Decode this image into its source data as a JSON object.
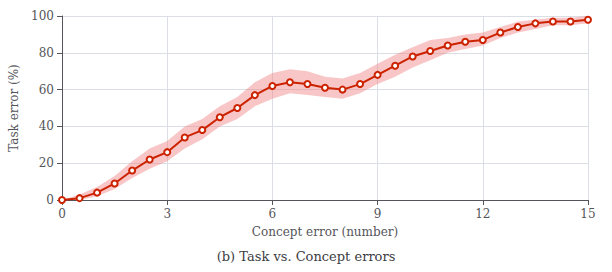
{
  "chart_data": {
    "type": "line",
    "title": "(b) Task vs. Concept errors",
    "xlabel": "Concept error (number)",
    "ylabel": "Task error (%)",
    "x": [
      0,
      0.5,
      1,
      1.5,
      2,
      2.5,
      3,
      3.5,
      4,
      4.5,
      5,
      5.5,
      6,
      6.5,
      7,
      7.5,
      8,
      8.5,
      9,
      9.5,
      10,
      10.5,
      11,
      11.5,
      12,
      12.5,
      13,
      13.5,
      14,
      14.5,
      15
    ],
    "values": [
      0,
      1,
      4,
      9,
      16,
      22,
      26,
      34,
      38,
      45,
      50,
      57,
      62,
      64,
      63,
      61,
      60,
      63,
      68,
      73,
      78,
      81,
      84,
      86,
      87,
      91,
      94,
      96,
      97,
      97,
      98
    ],
    "y_lower": [
      0,
      0,
      2,
      6,
      12,
      17,
      21,
      28,
      33,
      40,
      44,
      51,
      55,
      58,
      57,
      56,
      55,
      58,
      63,
      67,
      72,
      76,
      80,
      82,
      84,
      88,
      91,
      93,
      95,
      95,
      96
    ],
    "y_upper": [
      0,
      3,
      7,
      13,
      21,
      28,
      32,
      40,
      44,
      51,
      56,
      64,
      69,
      71,
      70,
      67,
      66,
      69,
      74,
      79,
      83,
      87,
      88,
      90,
      91,
      94,
      97,
      98,
      99,
      99,
      100
    ],
    "color": "#cc2200",
    "band_color": "#f08080",
    "marker": "circle",
    "xlim": [
      0,
      15
    ],
    "ylim": [
      0,
      100
    ],
    "xticks": [
      0,
      3,
      6,
      9,
      12,
      15
    ],
    "yticks": [
      0,
      20,
      40,
      60,
      80,
      100
    ],
    "grid": true
  }
}
